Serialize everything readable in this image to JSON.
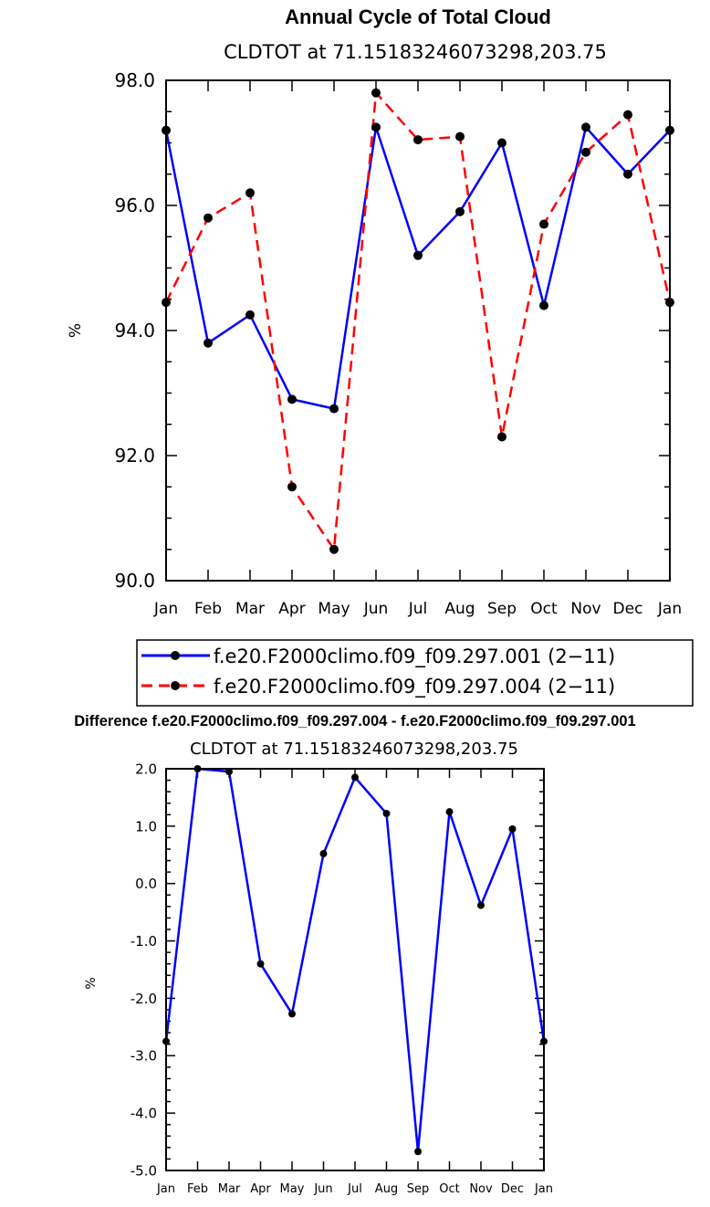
{
  "chart_data": [
    {
      "type": "line",
      "title": "Annual Cycle of Total Cloud",
      "subtitle": "CLDTOT at 71.15183246073298,203.75",
      "xlabel": "",
      "ylabel": "%",
      "categories": [
        "Jan",
        "Feb",
        "Mar",
        "Apr",
        "May",
        "Jun",
        "Jul",
        "Aug",
        "Sep",
        "Oct",
        "Nov",
        "Dec",
        "Jan"
      ],
      "ylim": [
        90.0,
        98.0
      ],
      "yticks": [
        "90.0",
        "92.0",
        "94.0",
        "96.0",
        "98.0"
      ],
      "grid": false,
      "legend_position": "bottom",
      "series": [
        {
          "name": "f.e20.F2000climo.f09_f09.297.001 (2−11)",
          "color": "#0000ff",
          "dash": "solid",
          "values": [
            97.2,
            93.8,
            94.25,
            92.9,
            92.75,
            97.25,
            95.2,
            95.9,
            97.0,
            94.4,
            97.25,
            96.5,
            97.2
          ]
        },
        {
          "name": "f.e20.F2000climo.f09_f09.297.004 (2−11)",
          "color": "#ff0000",
          "dash": "dashed",
          "values": [
            94.45,
            95.8,
            96.2,
            91.5,
            90.5,
            97.8,
            97.05,
            97.1,
            92.3,
            95.7,
            96.85,
            97.45,
            94.45
          ]
        }
      ]
    },
    {
      "type": "line",
      "title": "Difference f.e20.F2000climo.f09_f09.297.004 - f.e20.F2000climo.f09_f09.297.001",
      "subtitle": "CLDTOT at 71.15183246073298,203.75",
      "xlabel": "",
      "ylabel": "%",
      "categories": [
        "Jan",
        "Feb",
        "Mar",
        "Apr",
        "May",
        "Jun",
        "Jul",
        "Aug",
        "Sep",
        "Oct",
        "Nov",
        "Dec",
        "Jan"
      ],
      "ylim": [
        -5.0,
        2.0
      ],
      "yticks": [
        "-5.0",
        "-4.0",
        "-3.0",
        "-2.0",
        "-1.0",
        "0.0",
        "1.0",
        "2.0"
      ],
      "grid": false,
      "series": [
        {
          "name": "difference",
          "color": "#0000ff",
          "dash": "solid",
          "values": [
            -2.75,
            2.0,
            1.95,
            -1.4,
            -2.27,
            0.52,
            1.85,
            1.22,
            -4.67,
            1.25,
            -0.38,
            0.95,
            -2.75
          ]
        }
      ]
    }
  ]
}
